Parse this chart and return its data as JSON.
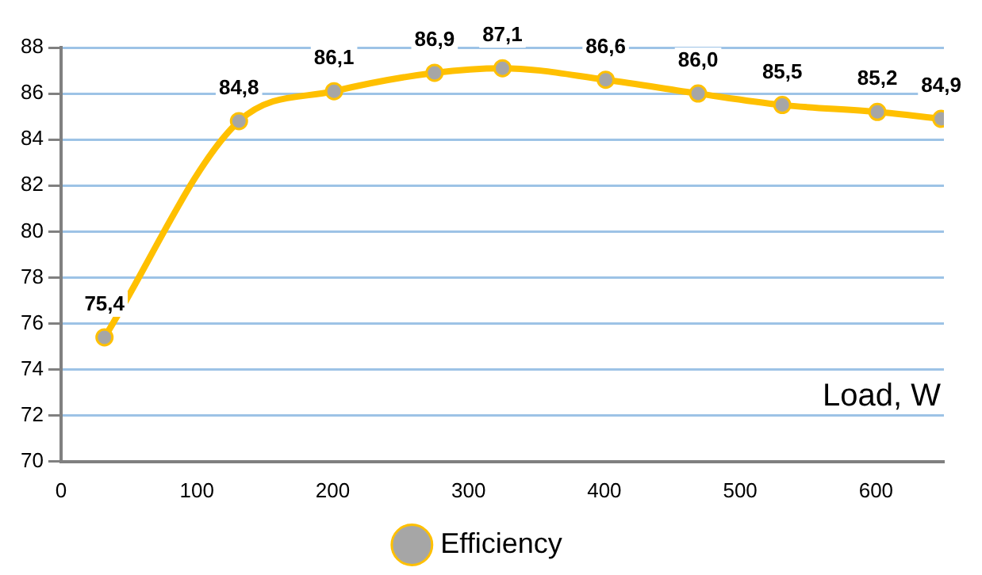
{
  "chart_data": {
    "type": "line",
    "xlabel": "Load, W",
    "x": [
      32,
      131,
      201,
      275,
      325,
      401,
      469,
      531,
      601,
      648
    ],
    "series": [
      {
        "name": "Efficiency",
        "color": "#ffc000",
        "values": [
          75.4,
          84.8,
          86.1,
          86.9,
          87.1,
          86.6,
          86.0,
          85.5,
          85.2,
          84.9
        ],
        "value_labels": [
          "75,4",
          "84,8",
          "86,1",
          "86,9",
          "87,1",
          "86,6",
          "86,0",
          "85,5",
          "85,2",
          "84,9"
        ]
      }
    ],
    "xlim": [
      0,
      650
    ],
    "xticks": [
      0,
      100,
      200,
      300,
      400,
      500,
      600
    ],
    "ylim": [
      70,
      88
    ],
    "yticks": [
      70,
      72,
      74,
      76,
      78,
      80,
      82,
      84,
      86,
      88
    ],
    "grid": "y",
    "legend": "bottom",
    "marker": "circle",
    "line_style": "solid"
  }
}
